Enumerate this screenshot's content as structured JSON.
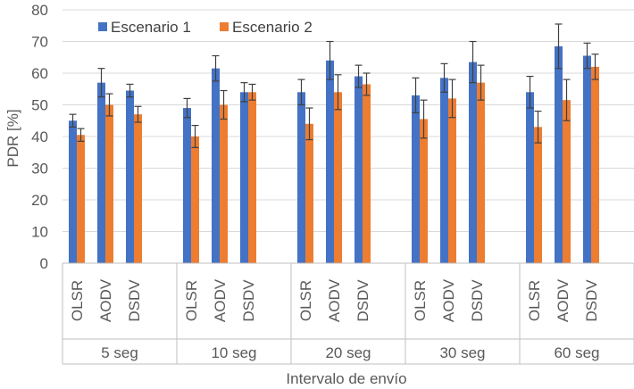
{
  "chart_data": {
    "type": "bar",
    "ylabel": "PDR [%]",
    "xlabel": "Intervalo de envío",
    "ylim": [
      0,
      80
    ],
    "yticks": [
      0,
      10,
      20,
      30,
      40,
      50,
      60,
      70,
      80
    ],
    "grid": true,
    "legend_position": "top-left",
    "groups": [
      "5 seg",
      "10 seg",
      "20 seg",
      "30 seg",
      "60 seg"
    ],
    "subcategories": [
      "OLSR",
      "AODV",
      "DSDV"
    ],
    "series": [
      {
        "name": "Escenario 1",
        "color": "#4472C4",
        "values": [
          [
            45,
            57,
            54.5
          ],
          [
            49,
            61.5,
            54
          ],
          [
            54,
            64,
            59
          ],
          [
            53,
            58.5,
            63.5
          ],
          [
            54,
            68.5,
            65.5
          ]
        ],
        "error": [
          [
            2,
            4.5,
            2
          ],
          [
            3,
            4,
            3
          ],
          [
            4,
            6,
            3.5
          ],
          [
            5.5,
            4.5,
            6.5
          ],
          [
            5,
            7,
            4
          ]
        ]
      },
      {
        "name": "Escenario 2",
        "color": "#ED7D31",
        "values": [
          [
            40.5,
            50,
            47
          ],
          [
            40,
            50,
            54
          ],
          [
            44,
            54,
            56.5
          ],
          [
            45.5,
            52,
            57
          ],
          [
            43,
            51.5,
            62
          ]
        ],
        "error": [
          [
            2,
            3.5,
            2.5
          ],
          [
            3.5,
            4.5,
            2.5
          ],
          [
            5,
            5.5,
            3.5
          ],
          [
            6,
            6,
            5.5
          ],
          [
            5,
            6.5,
            4
          ]
        ]
      }
    ]
  }
}
